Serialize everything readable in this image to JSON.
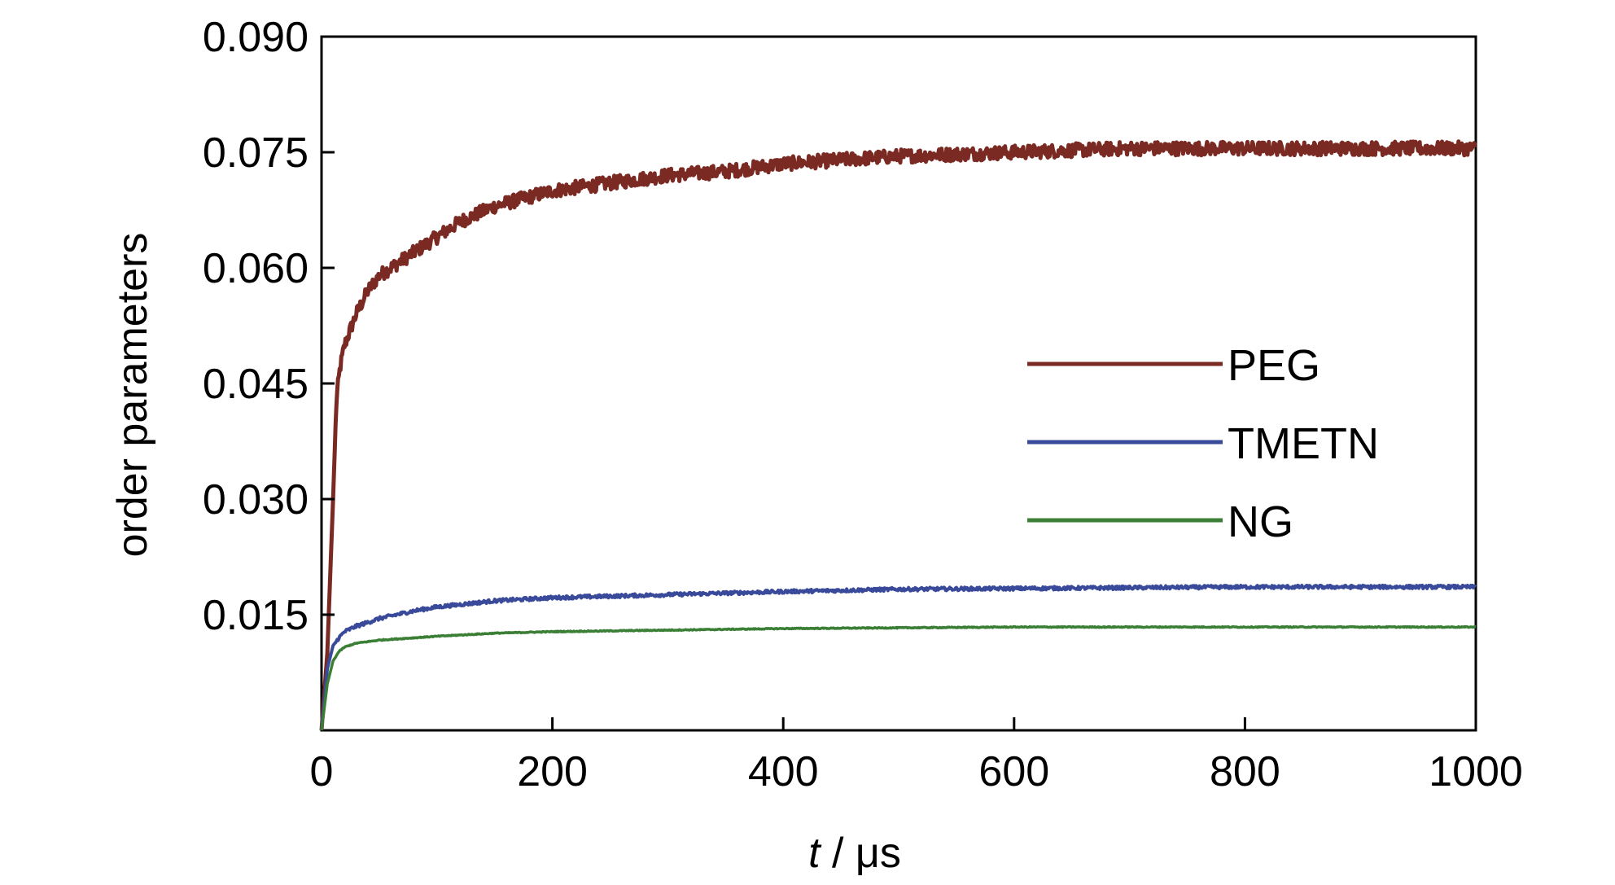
{
  "chart_data": {
    "type": "line",
    "title": "",
    "xlabel_italic": "t",
    "xlabel_rest": " / μs",
    "ylabel": "order parameters",
    "xlim": [
      0,
      1000
    ],
    "ylim": [
      0,
      0.09
    ],
    "x_ticks": [
      0,
      200,
      400,
      600,
      800,
      1000
    ],
    "x_tick_labels": [
      "0",
      "200",
      "400",
      "600",
      "800",
      "1000"
    ],
    "y_ticks": [
      0.015,
      0.03,
      0.045,
      0.06,
      0.075,
      0.09
    ],
    "y_tick_labels": [
      "0.015",
      "0.030",
      "0.045",
      "0.060",
      "0.075",
      "0.090"
    ],
    "grid": false,
    "legend_position": "center-right",
    "series": [
      {
        "name": "PEG",
        "color": "#7a2a22",
        "x": [
          0,
          5,
          10,
          13,
          16,
          20,
          25,
          30,
          40,
          50,
          60,
          80,
          100,
          120,
          150,
          200,
          250,
          300,
          350,
          400,
          450,
          500,
          600,
          700,
          800,
          900,
          1000
        ],
        "y": [
          0,
          0.01,
          0.03,
          0.043,
          0.047,
          0.05,
          0.052,
          0.054,
          0.057,
          0.059,
          0.06,
          0.062,
          0.064,
          0.066,
          0.068,
          0.07,
          0.071,
          0.072,
          0.0725,
          0.0735,
          0.074,
          0.0745,
          0.075,
          0.0755,
          0.0755,
          0.0755,
          0.0755
        ]
      },
      {
        "name": "TMETN",
        "color": "#3a4a9a",
        "x": [
          0,
          5,
          10,
          15,
          20,
          30,
          50,
          80,
          100,
          150,
          200,
          300,
          400,
          500,
          600,
          700,
          800,
          900,
          1000
        ],
        "y": [
          0,
          0.008,
          0.011,
          0.012,
          0.0128,
          0.0135,
          0.0145,
          0.0155,
          0.016,
          0.0168,
          0.0172,
          0.0176,
          0.018,
          0.0183,
          0.0184,
          0.0185,
          0.0186,
          0.0186,
          0.0186
        ]
      },
      {
        "name": "NG",
        "color": "#3a7f35",
        "x": [
          0,
          5,
          10,
          15,
          20,
          30,
          50,
          80,
          100,
          150,
          200,
          300,
          400,
          500,
          600,
          700,
          800,
          900,
          1000
        ],
        "y": [
          0,
          0.006,
          0.009,
          0.0102,
          0.0108,
          0.0113,
          0.0117,
          0.012,
          0.0122,
          0.0126,
          0.0128,
          0.013,
          0.0132,
          0.0133,
          0.0134,
          0.0134,
          0.0134,
          0.0134,
          0.0134
        ]
      }
    ]
  }
}
